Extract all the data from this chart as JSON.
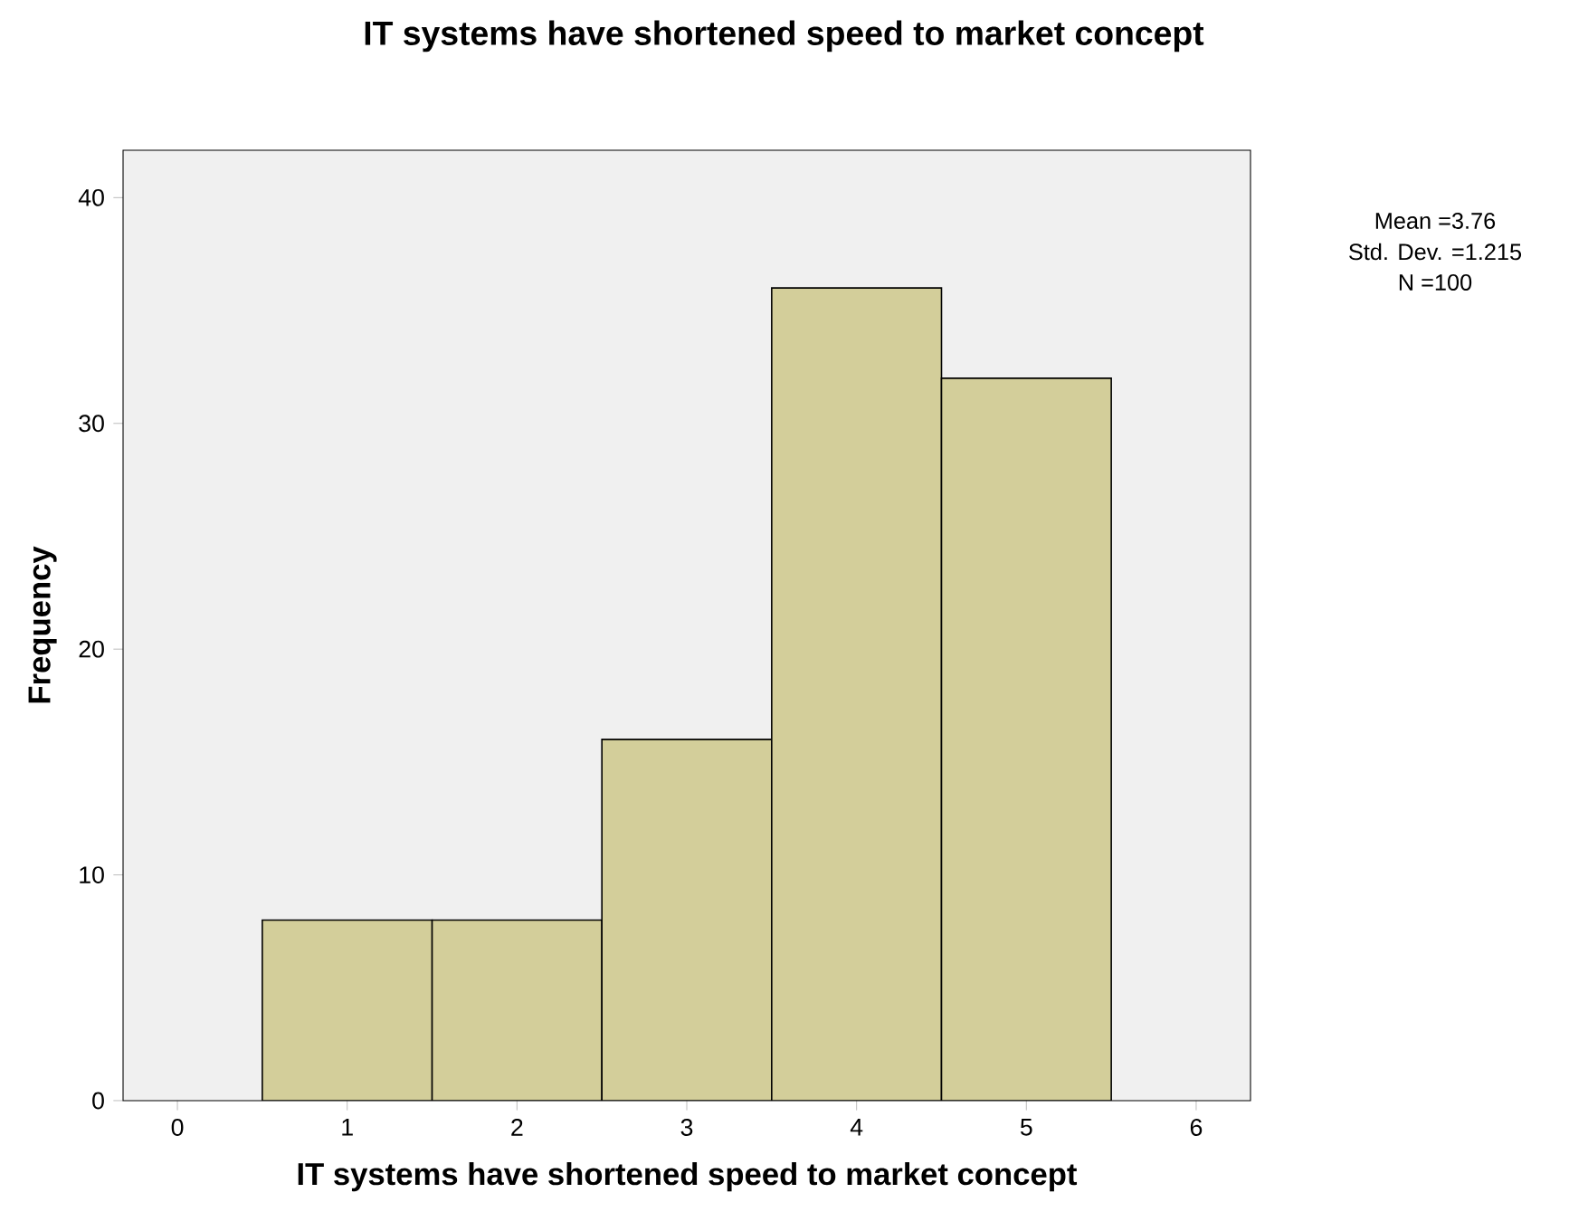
{
  "chart_data": {
    "type": "histogram",
    "title": "IT systems have shortened speed to market concept",
    "xlabel": "IT systems have shortened speed to market concept",
    "ylabel": "Frequency",
    "bins": [
      0.5,
      1.5,
      2.5,
      3.5,
      4.5,
      5.5
    ],
    "values": [
      8,
      8,
      16,
      36,
      32
    ],
    "color": "#d3ce9a",
    "xlim": [
      -0.32,
      6.32
    ],
    "ylim": [
      0,
      42.1
    ],
    "xticks": [
      0,
      1,
      2,
      3,
      4,
      5,
      6
    ],
    "yticks": [
      0,
      10,
      20,
      30,
      40
    ],
    "annotations": [
      "Mean =3.76",
      "Std. Dev. =1.215",
      "N =100"
    ]
  }
}
